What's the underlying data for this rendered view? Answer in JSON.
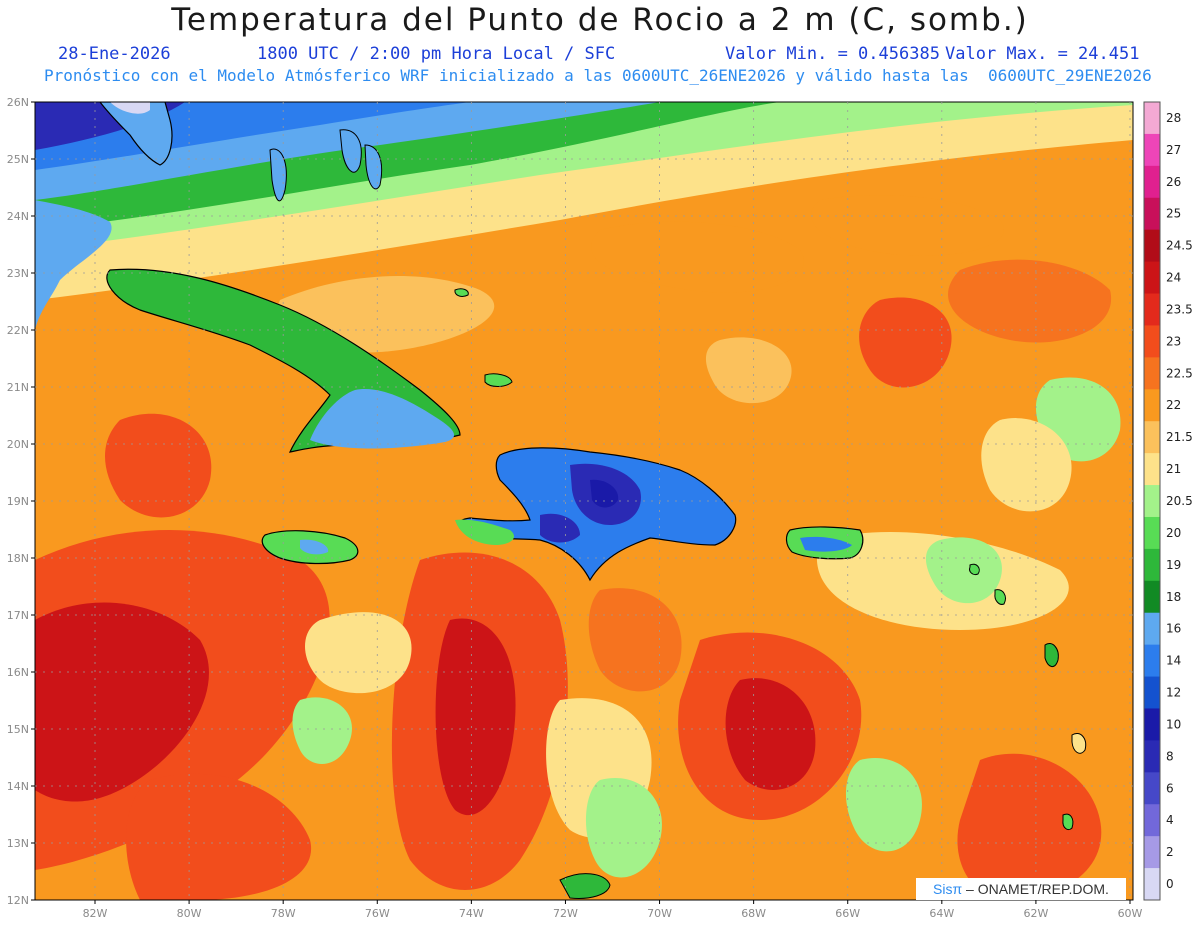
{
  "header": {
    "title": "Temperatura del Punto de Rocio a 2 m (C, somb.)",
    "date": "28-Ene-2026",
    "time": "1800 UTC / 2:00 pm Hora Local / SFC",
    "min": "Valor Min. = 0.456385",
    "max": "Valor Max. = 24.451",
    "subtitle": "Pronóstico con el Modelo Atmósferico WRF inicializado a las 0600UTC_26ENE2026 y válido hasta las  0600UTC_29ENE2026"
  },
  "map": {
    "lat_labels": [
      "26N",
      "25N",
      "24N",
      "23N",
      "22N",
      "21N",
      "20N",
      "19N",
      "18N",
      "17N",
      "16N",
      "15N",
      "14N",
      "13N",
      "12N"
    ],
    "lon_labels": [
      "82W",
      "80W",
      "78W",
      "76W",
      "74W",
      "72W",
      "70W",
      "68W",
      "66W",
      "64W",
      "62W",
      "60W"
    ]
  },
  "colorbar": {
    "labels": [
      "28",
      "27",
      "26",
      "25",
      "24.5",
      "24",
      "23.5",
      "23",
      "22.5",
      "22",
      "21.5",
      "21",
      "20.5",
      "20",
      "19",
      "18",
      "16",
      "14",
      "12",
      "10",
      "8",
      "6",
      "4",
      "2",
      "0"
    ],
    "colors": [
      "#f4a9d4",
      "#ee45b8",
      "#e0208f",
      "#c8105a",
      "#b10c18",
      "#cc1417",
      "#e32a1c",
      "#f24d1c",
      "#f6731f",
      "#f9991f",
      "#fbc15c",
      "#fde28a",
      "#a3f28a",
      "#58dc55",
      "#2eb83a",
      "#118a24",
      "#5ea9f0",
      "#2c7ded",
      "#1452cf",
      "#1a1aa8",
      "#2a2ab4",
      "#4648c8",
      "#7268da",
      "#a69ae6",
      "#d8d8f4"
    ]
  },
  "credit": {
    "sis": "Sisπ",
    "org": "– ONAMET/REP.DOM."
  }
}
